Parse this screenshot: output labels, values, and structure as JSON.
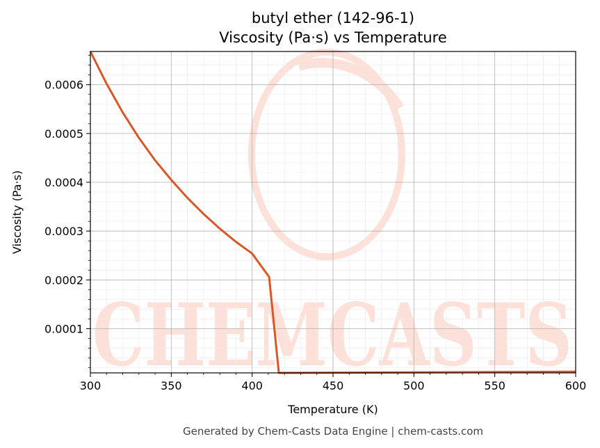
{
  "chart_data": {
    "type": "line",
    "title": "butyl ether (142-96-1)",
    "subtitle": "Viscosity (Pa·s) vs Temperature",
    "xlabel": "Temperature (K)",
    "ylabel": "Viscosity (Pa·s)",
    "xlim": [
      300,
      600
    ],
    "ylim": [
      9.5e-06,
      0.000668
    ],
    "x_ticks": [
      "300",
      "350",
      "400",
      "450",
      "500",
      "550",
      "600"
    ],
    "x_tick_values": [
      300,
      350,
      400,
      450,
      500,
      550,
      600
    ],
    "y_ticks": [
      "0.0001",
      "0.0002",
      "0.0003",
      "0.0004",
      "0.0005",
      "0.0006"
    ],
    "y_tick_values": [
      0.0001,
      0.0002,
      0.0003,
      0.0004,
      0.0005,
      0.0006
    ],
    "grid": "major and minor",
    "line_color": "#d95627",
    "series": [
      {
        "x": [
          300,
          310,
          320,
          330,
          340,
          350,
          360,
          370,
          380,
          390,
          400,
          410.5,
          416.5,
          450,
          500,
          550,
          600
        ],
        "y": [
          0.000668,
          0.000602,
          0.000543,
          0.000491,
          0.000445,
          0.000405,
          0.000368,
          0.000335,
          0.000305,
          0.000278,
          0.000254,
          0.000206,
          9.5e-06,
          9.8e-06,
          1.05e-05,
          1.12e-05,
          1.2e-05
        ]
      }
    ]
  },
  "watermark": {
    "text": "CHEMCASTS",
    "color": "#fde0d8"
  },
  "footer": "Generated by Chem-Casts Data Engine | chem-casts.com"
}
